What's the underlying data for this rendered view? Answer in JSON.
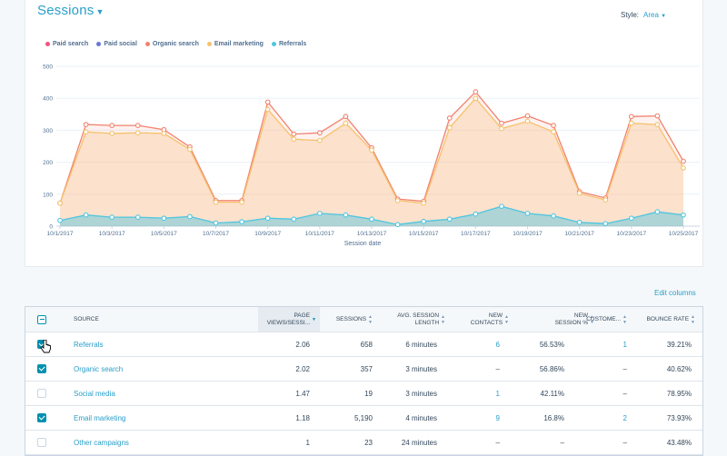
{
  "header": {
    "title": "Sessions",
    "style_label": "Style:",
    "style_value": "Area"
  },
  "legend": [
    {
      "label": "Paid search",
      "color": "#f2547d"
    },
    {
      "label": "Paid social",
      "color": "#6a78d1"
    },
    {
      "label": "Organic search",
      "color": "#f2826e"
    },
    {
      "label": "Email marketing",
      "color": "#f5c26b"
    },
    {
      "label": "Referrals",
      "color": "#4fc6e0"
    }
  ],
  "chart_data": {
    "type": "area",
    "xlabel": "Session date",
    "ylim": [
      0,
      500
    ],
    "yticks": [
      0,
      100,
      200,
      300,
      400,
      500
    ],
    "x": [
      "10/1/2017",
      "10/2/2017",
      "10/3/2017",
      "10/4/2017",
      "10/5/2017",
      "10/6/2017",
      "10/7/2017",
      "10/8/2017",
      "10/9/2017",
      "10/10/2017",
      "10/11/2017",
      "10/12/2017",
      "10/13/2017",
      "10/14/2017",
      "10/15/2017",
      "10/16/2017",
      "10/17/2017",
      "10/18/2017",
      "10/19/2017",
      "10/20/2017",
      "10/21/2017",
      "10/22/2017",
      "10/23/2017",
      "10/24/2017",
      "10/25/2017"
    ],
    "xtick_labels": [
      "10/1/2017",
      "10/3/2017",
      "10/5/2017",
      "10/7/2017",
      "10/9/2017",
      "10/11/2017",
      "10/13/2017",
      "10/15/2017",
      "10/17/2017",
      "10/19/2017",
      "10/21/2017",
      "10/23/2017",
      "10/25/2017"
    ],
    "series": [
      {
        "name": "Referrals",
        "color": "#4fc6e0",
        "values": [
          18,
          35,
          28,
          28,
          25,
          30,
          10,
          14,
          25,
          22,
          40,
          35,
          22,
          5,
          15,
          22,
          38,
          62,
          40,
          32,
          12,
          8,
          25,
          45,
          35
        ]
      },
      {
        "name": "Email marketing",
        "color": "#f5c26b",
        "values": [
          72,
          295,
          290,
          292,
          290,
          240,
          75,
          75,
          365,
          272,
          268,
          322,
          238,
          80,
          72,
          308,
          400,
          305,
          328,
          295,
          103,
          82,
          322,
          318,
          182
        ]
      },
      {
        "name": "Organic search",
        "color": "#f2826e",
        "values": [
          72,
          318,
          315,
          315,
          302,
          248,
          80,
          80,
          388,
          288,
          292,
          343,
          245,
          85,
          78,
          338,
          420,
          322,
          345,
          315,
          108,
          88,
          343,
          345,
          203
        ]
      }
    ]
  },
  "toolbar": {
    "edit_columns": "Edit columns"
  },
  "table": {
    "headers": {
      "source": "Source",
      "page_views_1": "Page",
      "page_views_2": "views/sessi...",
      "sessions": "Sessions",
      "avg_1": "Avg. session",
      "avg_2": "length",
      "contacts_1": "New",
      "contacts_2": "contacts",
      "newsess_1": "New",
      "newsess_2": "session %",
      "customers": "Custome...",
      "bounce": "Bounce rate"
    },
    "rows": [
      {
        "checked": true,
        "source": "Referrals",
        "pv": "2.06",
        "sessions": "658",
        "avg": "6 minutes",
        "contacts": "6",
        "newpct": "56.53%",
        "customers": "1",
        "bounce": "39.21%"
      },
      {
        "checked": true,
        "source": "Organic search",
        "pv": "2.02",
        "sessions": "357",
        "avg": "3 minutes",
        "contacts": "–",
        "newpct": "56.86%",
        "customers": "–",
        "bounce": "40.62%"
      },
      {
        "checked": false,
        "source": "Social media",
        "pv": "1.47",
        "sessions": "19",
        "avg": "3 minutes",
        "contacts": "1",
        "newpct": "42.11%",
        "customers": "–",
        "bounce": "78.95%"
      },
      {
        "checked": true,
        "source": "Email marketing",
        "pv": "1.18",
        "sessions": "5,190",
        "avg": "4 minutes",
        "contacts": "9",
        "newpct": "16.8%",
        "customers": "2",
        "bounce": "73.93%"
      },
      {
        "checked": false,
        "source": "Other campaigns",
        "pv": "1",
        "sessions": "23",
        "avg": "24 minutes",
        "contacts": "–",
        "newpct": "–",
        "customers": "–",
        "bounce": "43.48%"
      }
    ]
  }
}
